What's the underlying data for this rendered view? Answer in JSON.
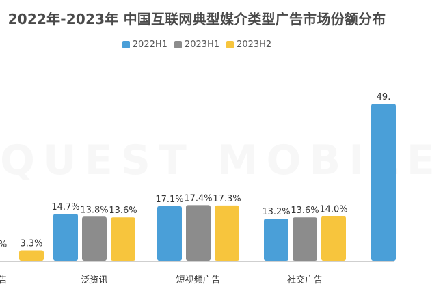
{
  "title": "2022年-2023年 中国互联网典型媒介类型广告市场份额分布",
  "watermark": "QUEST MOBILE",
  "legend": [
    {
      "label": "2022H1",
      "color": "#4a9fd8"
    },
    {
      "label": "2023H1",
      "color": "#8c8c8c"
    },
    {
      "label": "2023H2",
      "color": "#f7c53d"
    }
  ],
  "chart_data": {
    "type": "bar",
    "title": "2022年-2023年 中国互联网典型媒介类型广告市场份额分布",
    "categories": [
      "告",
      "泛资讯",
      "短视频广告",
      "社交广告",
      ""
    ],
    "series": [
      {
        "name": "2022H1",
        "values": [
          null,
          14.7,
          17.1,
          13.2,
          49.0
        ]
      },
      {
        "name": "2023H1",
        "values": [
          null,
          13.8,
          17.4,
          13.6,
          null
        ]
      },
      {
        "name": "2023H2",
        "values": [
          3.3,
          13.6,
          17.3,
          14.0,
          null
        ]
      }
    ],
    "data_labels": [
      [
        "",
        "14.7%",
        "17.1%",
        "13.2%",
        "49."
      ],
      [
        "%",
        "13.8%",
        "17.4%",
        "13.6%",
        ""
      ],
      [
        "3.3%",
        "13.6%",
        "17.3%",
        "14.0%",
        ""
      ]
    ],
    "ylim": [
      0,
      60
    ],
    "legend_position": "top"
  }
}
